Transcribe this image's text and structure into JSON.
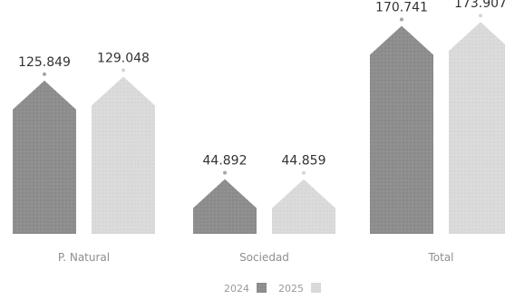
{
  "chart_data": {
    "type": "bar",
    "title": "",
    "xlabel": "",
    "ylabel": "",
    "categories": [
      "P. Natural",
      "Sociedad",
      "Total"
    ],
    "series": [
      {
        "name": "2024",
        "values": [
          125.849,
          44.892,
          170.741
        ],
        "labels": [
          "125.849",
          "44.892",
          "170.741"
        ],
        "color": "#8e8e8e"
      },
      {
        "name": "2025",
        "values": [
          129.048,
          44.859,
          173.907
        ],
        "labels": [
          "129.048",
          "44.859",
          "173.907"
        ],
        "color": "#dadada"
      }
    ],
    "ylim": [
      0,
      180
    ],
    "grid": false,
    "legend": "bottom-center"
  }
}
